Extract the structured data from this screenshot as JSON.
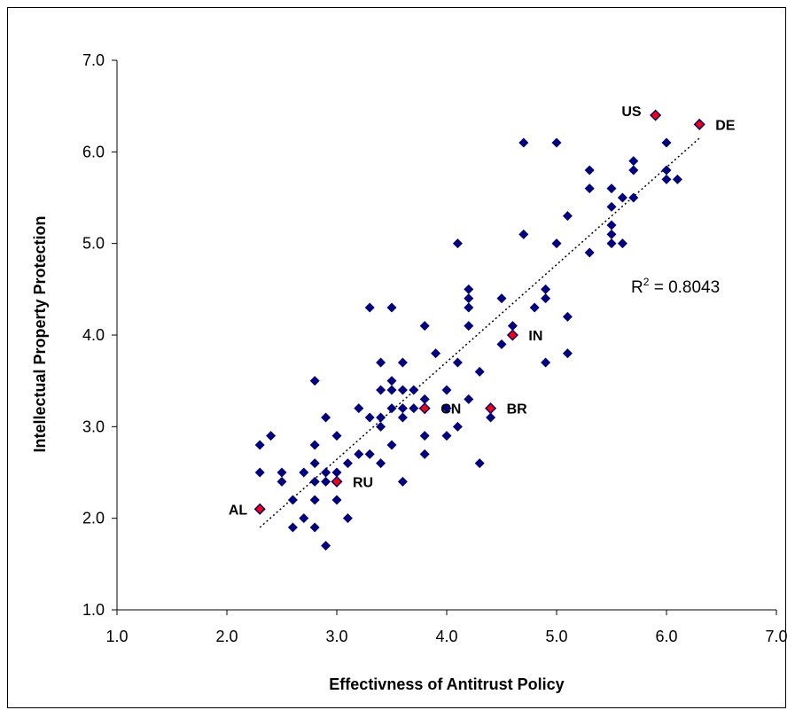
{
  "chart_data": {
    "type": "scatter",
    "title": "",
    "xlabel": "Effectivness of Antitrust Policy",
    "ylabel": "Intellectual Property Protection",
    "xlim": [
      1.0,
      7.0
    ],
    "ylim": [
      1.0,
      7.0
    ],
    "x_ticks": [
      "1.0",
      "2.0",
      "3.0",
      "4.0",
      "5.0",
      "6.0",
      "7.0"
    ],
    "y_ticks": [
      "1.0",
      "2.0",
      "3.0",
      "4.0",
      "5.0",
      "6.0",
      "7.0"
    ],
    "grid": false,
    "colors": {
      "point": "#000080",
      "highlight": "#ff0000",
      "trend": "#000000"
    },
    "trendline": {
      "type": "linear",
      "style": "dotted",
      "x_range": [
        2.3,
        6.3
      ],
      "y_range": [
        1.9,
        6.15
      ]
    },
    "r2_base": "R",
    "r2_exp": "2",
    "r2_value": " = 0.8043",
    "points": [
      [
        2.3,
        2.8
      ],
      [
        2.3,
        2.5
      ],
      [
        2.4,
        2.9
      ],
      [
        2.5,
        2.5
      ],
      [
        2.5,
        2.4
      ],
      [
        2.6,
        2.2
      ],
      [
        2.6,
        1.9
      ],
      [
        2.7,
        2.0
      ],
      [
        2.7,
        2.5
      ],
      [
        2.8,
        3.5
      ],
      [
        2.8,
        2.8
      ],
      [
        2.8,
        2.6
      ],
      [
        2.8,
        2.4
      ],
      [
        2.8,
        2.2
      ],
      [
        2.8,
        1.9
      ],
      [
        2.9,
        3.1
      ],
      [
        2.9,
        2.5
      ],
      [
        2.9,
        2.4
      ],
      [
        2.9,
        1.7
      ],
      [
        3.0,
        2.9
      ],
      [
        3.0,
        2.5
      ],
      [
        3.0,
        2.2
      ],
      [
        3.1,
        2.6
      ],
      [
        3.1,
        2.0
      ],
      [
        3.2,
        3.2
      ],
      [
        3.2,
        2.7
      ],
      [
        3.3,
        4.3
      ],
      [
        3.3,
        3.1
      ],
      [
        3.3,
        2.7
      ],
      [
        3.4,
        3.7
      ],
      [
        3.4,
        3.4
      ],
      [
        3.4,
        3.1
      ],
      [
        3.4,
        3.0
      ],
      [
        3.4,
        2.6
      ],
      [
        3.5,
        4.3
      ],
      [
        3.5,
        3.5
      ],
      [
        3.5,
        3.4
      ],
      [
        3.5,
        3.2
      ],
      [
        3.5,
        2.8
      ],
      [
        3.6,
        3.7
      ],
      [
        3.6,
        3.4
      ],
      [
        3.6,
        3.2
      ],
      [
        3.6,
        3.1
      ],
      [
        3.6,
        2.4
      ],
      [
        3.7,
        3.4
      ],
      [
        3.7,
        3.2
      ],
      [
        3.8,
        4.1
      ],
      [
        3.8,
        3.3
      ],
      [
        3.8,
        2.9
      ],
      [
        3.8,
        2.7
      ],
      [
        3.9,
        3.8
      ],
      [
        4.0,
        3.4
      ],
      [
        4.0,
        3.2
      ],
      [
        4.0,
        2.9
      ],
      [
        4.1,
        5.0
      ],
      [
        4.1,
        3.7
      ],
      [
        4.1,
        3.0
      ],
      [
        4.2,
        4.5
      ],
      [
        4.2,
        4.4
      ],
      [
        4.2,
        4.3
      ],
      [
        4.2,
        4.1
      ],
      [
        4.2,
        3.3
      ],
      [
        4.3,
        3.6
      ],
      [
        4.3,
        2.6
      ],
      [
        4.4,
        3.1
      ],
      [
        4.5,
        4.4
      ],
      [
        4.5,
        3.9
      ],
      [
        4.6,
        4.1
      ],
      [
        4.7,
        6.1
      ],
      [
        4.7,
        5.1
      ],
      [
        4.8,
        4.3
      ],
      [
        4.9,
        4.5
      ],
      [
        4.9,
        4.4
      ],
      [
        4.9,
        3.7
      ],
      [
        5.0,
        6.1
      ],
      [
        5.0,
        5.0
      ],
      [
        5.1,
        5.3
      ],
      [
        5.1,
        4.2
      ],
      [
        5.1,
        3.8
      ],
      [
        5.3,
        5.8
      ],
      [
        5.3,
        5.6
      ],
      [
        5.3,
        4.9
      ],
      [
        5.5,
        5.6
      ],
      [
        5.5,
        5.4
      ],
      [
        5.5,
        5.2
      ],
      [
        5.5,
        5.1
      ],
      [
        5.5,
        5.0
      ],
      [
        5.6,
        5.5
      ],
      [
        5.6,
        5.0
      ],
      [
        5.7,
        5.9
      ],
      [
        5.7,
        5.8
      ],
      [
        5.7,
        5.5
      ],
      [
        6.0,
        6.1
      ],
      [
        6.0,
        5.8
      ],
      [
        6.0,
        5.7
      ],
      [
        6.1,
        5.7
      ]
    ],
    "highlighted": [
      {
        "label": "US",
        "x": 5.9,
        "y": 6.4
      },
      {
        "label": "DE",
        "x": 6.3,
        "y": 6.3
      },
      {
        "label": "IN",
        "x": 4.6,
        "y": 4.0
      },
      {
        "label": "CN",
        "x": 3.8,
        "y": 3.2
      },
      {
        "label": "BR",
        "x": 4.4,
        "y": 3.2
      },
      {
        "label": "RU",
        "x": 3.0,
        "y": 2.4
      },
      {
        "label": "AL",
        "x": 2.3,
        "y": 2.1
      }
    ]
  }
}
